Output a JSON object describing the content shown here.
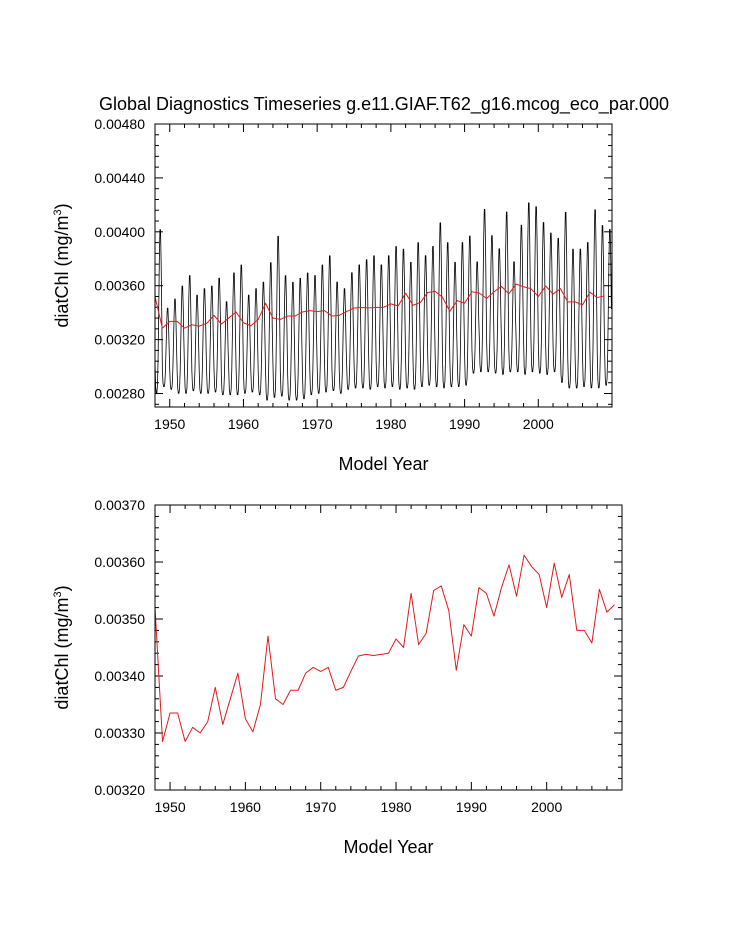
{
  "figure": {
    "title": "Global Diagnostics Timeseries g.e11.GIAF.T62_g16.mcog_eco_par.000",
    "line_colors": {
      "monthly": "#000000",
      "annual": "#e41a1c"
    }
  },
  "chart_data": [
    {
      "type": "line",
      "name": "monthly_with_annual_mean",
      "title": "Global Diagnostics Timeseries g.e11.GIAF.T62_g16.mcog_eco_par.000",
      "xlabel": "Model Year",
      "ylabel_base": "diatChl (mg/m",
      "ylabel_sup": "3",
      "ylabel_end": ")",
      "xlim": [
        1948,
        2010
      ],
      "ylim": [
        0.0027,
        0.0048
      ],
      "xticks": [
        1950,
        1960,
        1970,
        1980,
        1990,
        2000
      ],
      "xtick_labels": [
        "1950",
        "1960",
        "1970",
        "1980",
        "1990",
        "2000"
      ],
      "yticks": [
        0.0028,
        0.0032,
        0.0036,
        0.004,
        0.0044,
        0.0048
      ],
      "ytick_labels": [
        "0.00280",
        "0.00320",
        "0.00360",
        "0.00400",
        "0.00440",
        "0.00480"
      ],
      "series": [
        {
          "name": "monthly",
          "color": "#000000",
          "start_year": 1948,
          "annual_maxima": [
            0.00405,
            0.00345,
            0.00352,
            0.00362,
            0.0037,
            0.00355,
            0.0036,
            0.00362,
            0.00368,
            0.0035,
            0.00372,
            0.00378,
            0.00355,
            0.0036,
            0.00365,
            0.0038,
            0.004,
            0.0037,
            0.00365,
            0.00368,
            0.00372,
            0.0037,
            0.00378,
            0.00385,
            0.00365,
            0.0036,
            0.00372,
            0.00378,
            0.00382,
            0.00385,
            0.00378,
            0.00385,
            0.00392,
            0.0039,
            0.0038,
            0.00395,
            0.00385,
            0.00392,
            0.0041,
            0.00395,
            0.0038,
            0.00395,
            0.004,
            0.0038,
            0.0042,
            0.004,
            0.0039,
            0.00418,
            0.0038,
            0.00408,
            0.00425,
            0.00422,
            0.0041,
            0.00402,
            0.00398,
            0.00418,
            0.0039,
            0.0039,
            0.00395,
            0.0042,
            0.00408,
            0.00405
          ],
          "annual_minima": [
            0.0028,
            0.00285,
            0.00283,
            0.0028,
            0.0028,
            0.00282,
            0.0028,
            0.0028,
            0.00281,
            0.00279,
            0.00279,
            0.00279,
            0.0028,
            0.00281,
            0.00279,
            0.00275,
            0.00277,
            0.00278,
            0.00275,
            0.00275,
            0.00276,
            0.00279,
            0.0028,
            0.00281,
            0.00282,
            0.0028,
            0.00283,
            0.00284,
            0.00284,
            0.00283,
            0.00285,
            0.00284,
            0.00285,
            0.00283,
            0.00284,
            0.00283,
            0.00285,
            0.00286,
            0.00285,
            0.00284,
            0.00285,
            0.00285,
            0.00286,
            0.00295,
            0.00296,
            0.00296,
            0.00295,
            0.00294,
            0.00296,
            0.00296,
            0.00294,
            0.00296,
            0.00295,
            0.00294,
            0.00296,
            0.00288,
            0.00284,
            0.00284,
            0.00285,
            0.00284,
            0.00284,
            0.00286
          ]
        },
        {
          "name": "annual_mean",
          "color": "#e41a1c",
          "x": [
            1948,
            1949,
            1950,
            1951,
            1952,
            1953,
            1954,
            1955,
            1956,
            1957,
            1958,
            1959,
            1960,
            1961,
            1962,
            1963,
            1964,
            1965,
            1966,
            1967,
            1968,
            1969,
            1970,
            1971,
            1972,
            1973,
            1974,
            1975,
            1976,
            1977,
            1978,
            1979,
            1980,
            1981,
            1982,
            1983,
            1984,
            1985,
            1986,
            1987,
            1988,
            1989,
            1990,
            1991,
            1992,
            1993,
            1994,
            1995,
            1996,
            1997,
            1998,
            1999,
            2000,
            2001,
            2002,
            2003,
            2004,
            2005,
            2006,
            2007,
            2008,
            2009
          ],
          "values": [
            0.00352,
            0.003285,
            0.003335,
            0.003335,
            0.003285,
            0.00331,
            0.0033,
            0.00332,
            0.00338,
            0.003315,
            0.00336,
            0.003405,
            0.003325,
            0.003302,
            0.00335,
            0.00347,
            0.00336,
            0.00335,
            0.003375,
            0.003375,
            0.003405,
            0.003415,
            0.003408,
            0.003415,
            0.003375,
            0.00338,
            0.003408,
            0.003435,
            0.003438,
            0.003436,
            0.003438,
            0.00344,
            0.003465,
            0.00345,
            0.003545,
            0.003455,
            0.003475,
            0.00355,
            0.003558,
            0.003515,
            0.00341,
            0.00349,
            0.00347,
            0.003555,
            0.003545,
            0.003505,
            0.003555,
            0.003595,
            0.00354,
            0.003612,
            0.003592,
            0.003578,
            0.00352,
            0.003598,
            0.003538,
            0.003578,
            0.00348,
            0.00348,
            0.003458,
            0.003552,
            0.003512,
            0.003525
          ]
        }
      ]
    },
    {
      "type": "line",
      "name": "annual_mean_only",
      "xlabel": "Model Year",
      "ylabel_base": "diatChl (mg/m",
      "ylabel_sup": "3",
      "ylabel_end": ")",
      "xlim": [
        1948,
        2010
      ],
      "ylim": [
        0.0032,
        0.0037
      ],
      "xticks": [
        1950,
        1960,
        1970,
        1980,
        1990,
        2000
      ],
      "xtick_labels": [
        "1950",
        "1960",
        "1970",
        "1980",
        "1990",
        "2000"
      ],
      "yticks": [
        0.0032,
        0.0033,
        0.0034,
        0.0035,
        0.0036,
        0.0037
      ],
      "ytick_labels": [
        "0.00320",
        "0.00330",
        "0.00340",
        "0.00350",
        "0.00360",
        "0.00370"
      ],
      "series": [
        {
          "name": "annual_mean",
          "color": "#e41a1c",
          "x": [
            1948,
            1949,
            1950,
            1951,
            1952,
            1953,
            1954,
            1955,
            1956,
            1957,
            1958,
            1959,
            1960,
            1961,
            1962,
            1963,
            1964,
            1965,
            1966,
            1967,
            1968,
            1969,
            1970,
            1971,
            1972,
            1973,
            1974,
            1975,
            1976,
            1977,
            1978,
            1979,
            1980,
            1981,
            1982,
            1983,
            1984,
            1985,
            1986,
            1987,
            1988,
            1989,
            1990,
            1991,
            1992,
            1993,
            1994,
            1995,
            1996,
            1997,
            1998,
            1999,
            2000,
            2001,
            2002,
            2003,
            2004,
            2005,
            2006,
            2007,
            2008,
            2009
          ],
          "values": [
            0.00352,
            0.003285,
            0.003335,
            0.003335,
            0.003285,
            0.00331,
            0.0033,
            0.00332,
            0.00338,
            0.003315,
            0.00336,
            0.003405,
            0.003325,
            0.003302,
            0.00335,
            0.00347,
            0.00336,
            0.00335,
            0.003375,
            0.003375,
            0.003405,
            0.003415,
            0.003408,
            0.003415,
            0.003375,
            0.00338,
            0.003408,
            0.003435,
            0.003438,
            0.003436,
            0.003438,
            0.00344,
            0.003465,
            0.00345,
            0.003545,
            0.003455,
            0.003475,
            0.00355,
            0.003558,
            0.003515,
            0.00341,
            0.00349,
            0.00347,
            0.003555,
            0.003545,
            0.003505,
            0.003555,
            0.003595,
            0.00354,
            0.003612,
            0.003592,
            0.003578,
            0.00352,
            0.003598,
            0.003538,
            0.003578,
            0.00348,
            0.00348,
            0.003458,
            0.003552,
            0.003512,
            0.003525
          ]
        }
      ]
    }
  ]
}
